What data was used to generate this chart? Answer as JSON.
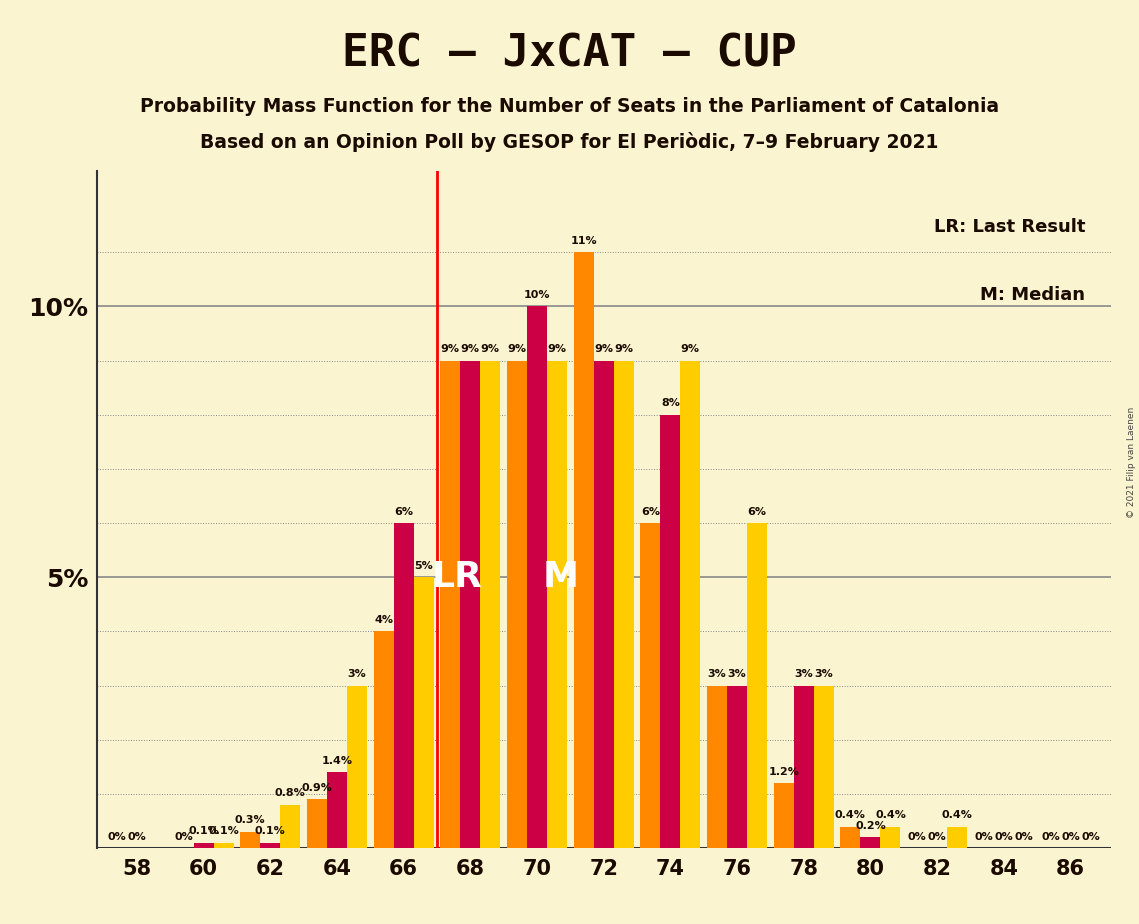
{
  "title": "ERC – JxCAT – CUP",
  "subtitle1": "Probability Mass Function for the Number of Seats in the Parliament of Catalonia",
  "subtitle2": "Based on an Opinion Poll by GESOP for El Periòdic, 7–9 February 2021",
  "copyright": "© 2021 Filip van Laenen",
  "background_color": "#FAF5D0",
  "bar_color_crimson": "#CC0044",
  "bar_color_orange": "#FF8800",
  "bar_color_yellow": "#FFCC00",
  "seats": [
    58,
    60,
    62,
    64,
    66,
    68,
    70,
    72,
    74,
    76,
    78,
    80,
    82,
    84,
    86
  ],
  "orange": [
    0.0,
    0.0,
    0.3,
    0.9,
    4.0,
    9.0,
    9.0,
    11.0,
    6.0,
    3.0,
    1.2,
    0.4,
    0.0,
    0.0,
    0.0
  ],
  "crimson": [
    0.0,
    0.1,
    0.1,
    1.4,
    6.0,
    9.0,
    10.0,
    9.0,
    8.0,
    3.0,
    3.0,
    0.2,
    0.0,
    0.0,
    0.0
  ],
  "yellow": [
    0.0,
    0.1,
    0.8,
    3.0,
    5.0,
    9.0,
    9.0,
    9.0,
    9.0,
    6.0,
    3.0,
    0.4,
    0.4,
    0.0,
    0.0
  ],
  "orange_labels": [
    "0%",
    "0%",
    "0.3%",
    "0.9%",
    "4%",
    "9%",
    "9%",
    "11%",
    "6%",
    "3%",
    "1.2%",
    "0.4%",
    "0%",
    "0%",
    "0%"
  ],
  "crimson_labels": [
    "0%",
    "0.1%",
    "0.1%",
    "1.4%",
    "6%",
    "9%",
    "10%",
    "9%",
    "8%",
    "3%",
    "3%",
    "0.2%",
    "0%",
    "0%",
    "0%"
  ],
  "yellow_labels": [
    "",
    "0.1%",
    "0.8%",
    "3%",
    "5%",
    "9%",
    "9%",
    "9%",
    "9%",
    "6%",
    "3%",
    "0.4%",
    "0.4%",
    "0%",
    "0%"
  ],
  "lr_line_seat": 67,
  "median_seat": 71,
  "lr_label": "LR",
  "median_label": "M",
  "legend_lr": "LR: Last Result",
  "legend_m": "M: Median",
  "ylim_max": 12.5,
  "ytick_positions": [
    5,
    10
  ],
  "ytick_labels": [
    "5%",
    "10%"
  ],
  "grid_lines": [
    1,
    2,
    3,
    4,
    5,
    6,
    7,
    8,
    9,
    10,
    11
  ],
  "solid_lines": [
    5,
    10
  ]
}
